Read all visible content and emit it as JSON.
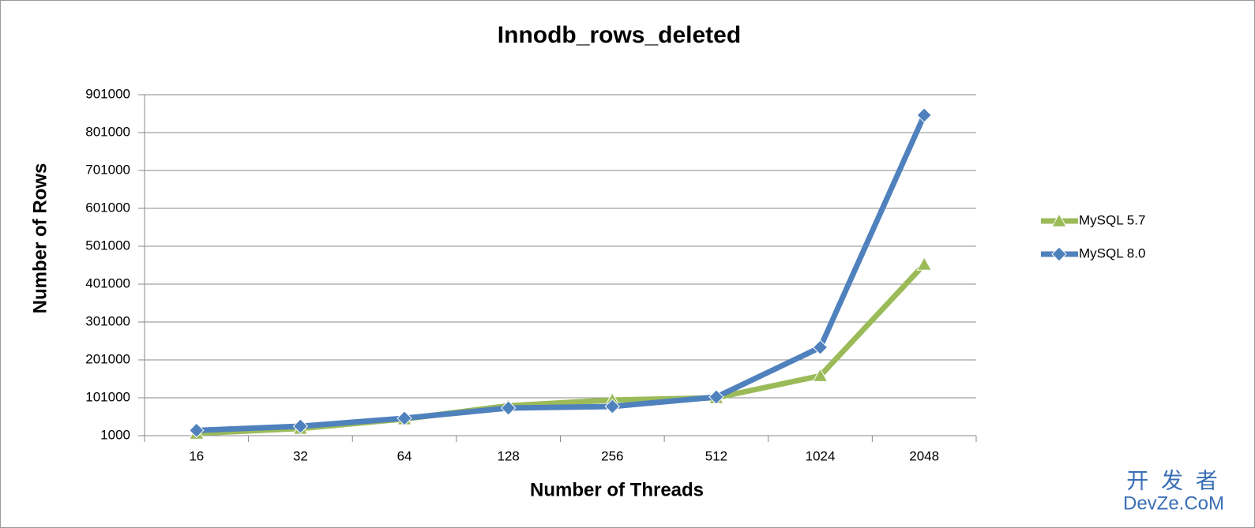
{
  "chart_data": {
    "type": "line",
    "title": "Innodb_rows_deleted",
    "x_label": "Number of Threads",
    "y_label": "Number of Rows",
    "categories": [
      "16",
      "32",
      "64",
      "128",
      "256",
      "512",
      "1024",
      "2048"
    ],
    "series": [
      {
        "name": "MySQL 5.7",
        "color": "#9bbb59",
        "marker": "triangle",
        "values": [
          7000,
          20000,
          45000,
          80000,
          95000,
          101000,
          159000,
          453000
        ]
      },
      {
        "name": "MySQL 8.0",
        "color": "#4f81bd",
        "marker": "diamond",
        "values": [
          15000,
          26000,
          47000,
          74000,
          78000,
          103000,
          234000,
          847000
        ]
      }
    ],
    "ylim": [
      1000,
      901000
    ],
    "yticks": [
      1000,
      101000,
      201000,
      301000,
      401000,
      501000,
      601000,
      701000,
      801000,
      901000
    ],
    "grid": true,
    "legend": "right",
    "watermark": {
      "top": "开 发 者",
      "bottom": "DevZe.CoM"
    }
  }
}
